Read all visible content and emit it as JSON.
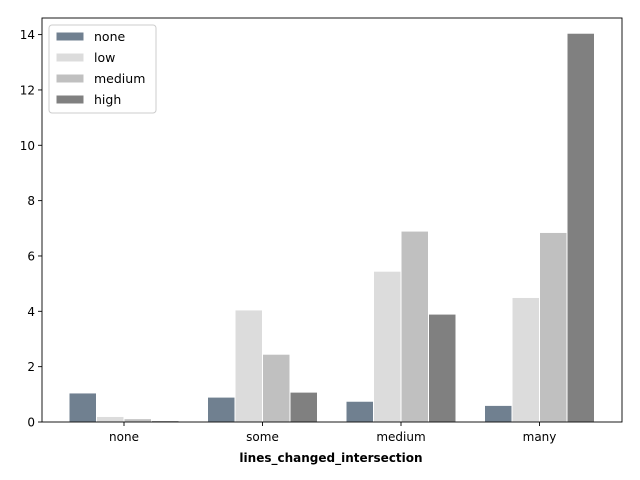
{
  "chart_data": {
    "type": "bar",
    "title": "",
    "xlabel": "lines_changed_intersection",
    "ylabel": "",
    "categories": [
      "none",
      "some",
      "medium",
      "many"
    ],
    "ylim": [
      0,
      14.6
    ],
    "yticks": [
      0,
      2,
      4,
      6,
      8,
      10,
      12,
      14
    ],
    "grid": false,
    "legend": {
      "placement": "top-left"
    },
    "series": [
      {
        "name": "none",
        "color": "#708090",
        "values": [
          1.05,
          0.9,
          0.75,
          0.6
        ]
      },
      {
        "name": "low",
        "color": "#dcdcdc",
        "values": [
          0.2,
          4.05,
          5.45,
          4.5
        ]
      },
      {
        "name": "medium",
        "color": "#c0c0c0",
        "values": [
          0.12,
          2.45,
          6.9,
          6.85
        ]
      },
      {
        "name": "high",
        "color": "#808080",
        "values": [
          0.05,
          1.08,
          3.9,
          14.05
        ]
      }
    ]
  }
}
